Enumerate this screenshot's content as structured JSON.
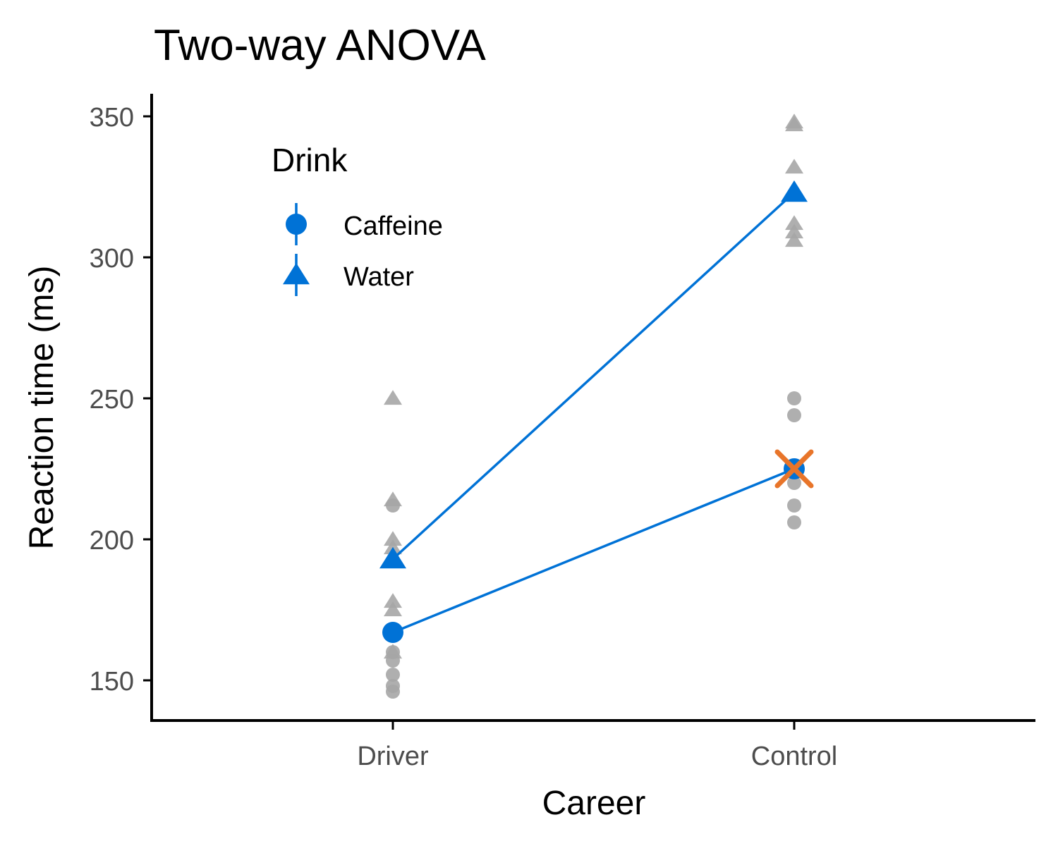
{
  "chart_data": {
    "type": "scatter",
    "title": "Two-way ANOVA",
    "xlabel": "Career",
    "ylabel": "Reaction time (ms)",
    "categories": [
      "Driver",
      "Control"
    ],
    "yticks": [
      150,
      200,
      250,
      300,
      350
    ],
    "ylim": [
      136,
      358
    ],
    "grid": false,
    "legend": {
      "title": "Drink",
      "position": "top-left",
      "entries": [
        "Caffeine",
        "Water"
      ]
    },
    "colors": {
      "mean": "#0072d6",
      "raw": "#a6a6a6",
      "highlight": "#e8752a"
    },
    "raw_points": [
      {
        "name": "Caffeine",
        "marker": "circle",
        "values": {
          "Driver": [
            146,
            148,
            152,
            157,
            160,
            168,
            212
          ],
          "Control": [
            206,
            212,
            220,
            225,
            244,
            250
          ]
        }
      },
      {
        "name": "Water",
        "marker": "triangle",
        "values": {
          "Driver": [
            160,
            175,
            178,
            197,
            200,
            214,
            250
          ],
          "Control": [
            306,
            309,
            312,
            332,
            347,
            348
          ]
        }
      }
    ],
    "series": [
      {
        "name": "Caffeine",
        "marker": "circle",
        "values": [
          167,
          225
        ]
      },
      {
        "name": "Water",
        "marker": "triangle",
        "values": [
          193,
          323
        ]
      }
    ],
    "annotations": [
      {
        "marker": "x",
        "category": "Control",
        "y": 225,
        "color": "#e8752a"
      }
    ]
  }
}
